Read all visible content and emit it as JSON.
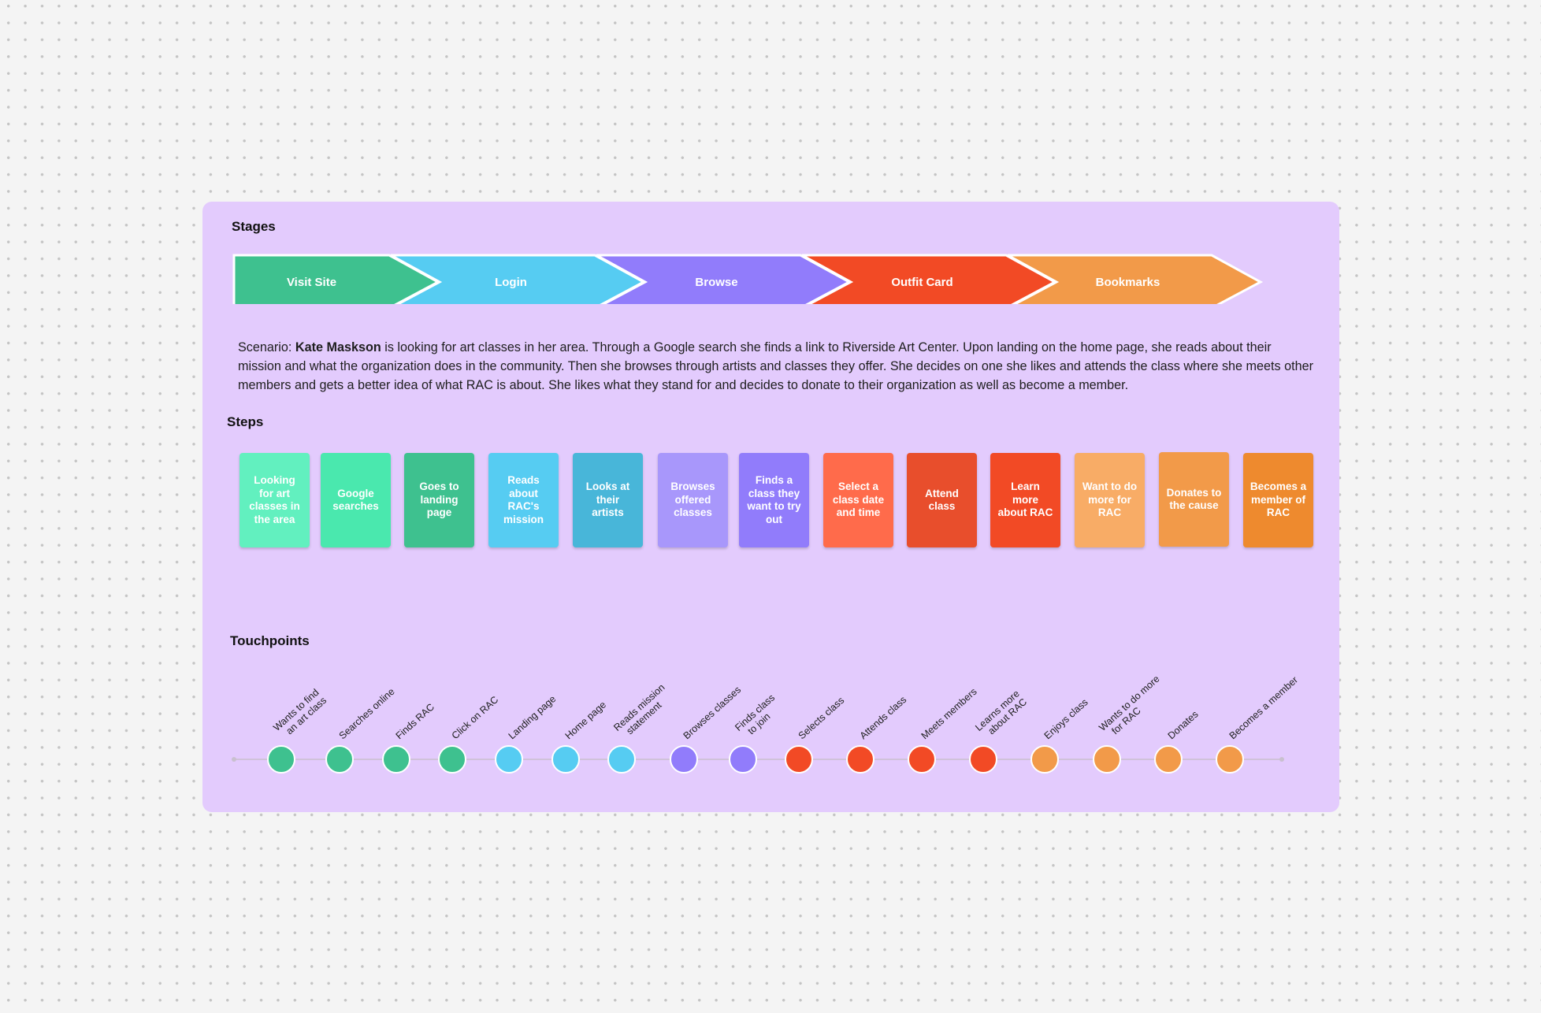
{
  "board": {
    "background_color": "#e3cbfd"
  },
  "stages": {
    "title": "Stages",
    "items": [
      {
        "label": "Visit Site",
        "color": "#3ec18f"
      },
      {
        "label": "Login",
        "color": "#56ccf2"
      },
      {
        "label": "Browse",
        "color": "#917cfb"
      },
      {
        "label": "Outfit Card",
        "color": "#f24a25"
      },
      {
        "label": "Bookmarks",
        "color": "#f29a49"
      }
    ]
  },
  "scenario": {
    "prefix": "Scenario: ",
    "name": "Kate Maskson",
    "text": " is looking for art classes in her area. Through a Google search she finds a link to Riverside Art Center. Upon landing on the home page, she reads about their mission and what the organization does in the community. Then she browses through artists and classes they offer. She decides on one she likes and attends the class where she meets other members and gets a better idea of what RAC is about. She likes what they stand for and decides to donate to their organization as well as become a member."
  },
  "steps": {
    "title": "Steps",
    "items": [
      {
        "label": "Looking for art classes in the area",
        "color": "#62f0bf"
      },
      {
        "label": "Google searches",
        "color": "#4ae8ae"
      },
      {
        "label": "Goes to landing page",
        "color": "#3ec18f"
      },
      {
        "label": "Reads about RAC's mission",
        "color": "#56ccf2"
      },
      {
        "label": "Looks at their artists",
        "color": "#48b6d9"
      },
      {
        "label": "Browses offered classes",
        "color": "#a897fb"
      },
      {
        "label": "Finds a class they want to try out",
        "color": "#917cfb"
      },
      {
        "label": "Select a class date and time",
        "color": "#ff6b4b"
      },
      {
        "label": "Attend class",
        "color": "#e84e2c"
      },
      {
        "label": "Learn more about RAC",
        "color": "#f24a25"
      },
      {
        "label": "Want to do more for RAC",
        "color": "#f8ac66"
      },
      {
        "label": "Donates to the cause",
        "color": "#f29a49"
      },
      {
        "label": "Becomes a member of RAC",
        "color": "#ee8a2e"
      }
    ]
  },
  "touchpoints": {
    "title": "Touchpoints",
    "line_color": "#c9c0cf",
    "items": [
      {
        "label": "Wants to find an art class",
        "color": "#3ec18f"
      },
      {
        "label": "Searches online",
        "color": "#3ec18f"
      },
      {
        "label": "Finds RAC",
        "color": "#3ec18f"
      },
      {
        "label": "Click on RAC",
        "color": "#3ec18f"
      },
      {
        "label": "Landing page",
        "color": "#56ccf2"
      },
      {
        "label": "Home page",
        "color": "#56ccf2"
      },
      {
        "label": "Reads mission statement",
        "color": "#56ccf2"
      },
      {
        "label": "Browses classes",
        "color": "#917cfb"
      },
      {
        "label": "Finds class to join",
        "color": "#917cfb"
      },
      {
        "label": "Selects class",
        "color": "#f24a25"
      },
      {
        "label": "Attends class",
        "color": "#f24a25"
      },
      {
        "label": "Meets members",
        "color": "#f24a25"
      },
      {
        "label": "Learns more about RAC",
        "color": "#f24a25"
      },
      {
        "label": "Enjoys class",
        "color": "#f29a49"
      },
      {
        "label": "Wants to do more for RAC",
        "color": "#f29a49"
      },
      {
        "label": "Donates",
        "color": "#f29a49"
      },
      {
        "label": "Becomes a member",
        "color": "#f29a49"
      }
    ]
  }
}
